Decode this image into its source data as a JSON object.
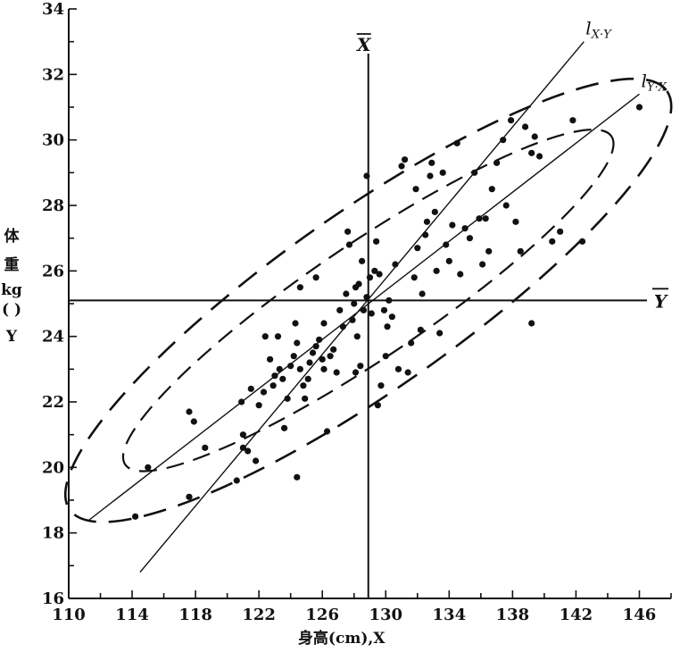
{
  "chart_data": {
    "type": "scatter",
    "title": "",
    "xlabel": "身高(cm),X",
    "ylabel_chars": [
      "体",
      "重",
      "kg",
      "( )",
      "Y"
    ],
    "xlim": [
      110,
      148
    ],
    "ylim": [
      16,
      34
    ],
    "x_ticks": [
      110,
      114,
      118,
      122,
      126,
      130,
      134,
      138,
      142,
      146
    ],
    "y_ticks": [
      16,
      18,
      20,
      22,
      24,
      26,
      28,
      30,
      32,
      34
    ],
    "grid": false,
    "mean_x": 128.9,
    "mean_y": 25.1,
    "mean_x_label": "X",
    "mean_y_label": "Y",
    "regression_lines": [
      {
        "name_main": "l",
        "name_sub": "X·Y",
        "from": [
          114.5,
          16.8
        ],
        "to": [
          142.5,
          33.0
        ]
      },
      {
        "name_main": "l",
        "name_sub": "Y·X",
        "from": [
          111.3,
          18.4
        ],
        "to": [
          146.0,
          31.4
        ]
      }
    ],
    "ellipses": [
      {
        "center": [
          128.9,
          25.1
        ],
        "semi_major_cm": 23.0,
        "semi_minor_cm": 5.6,
        "angle_deg": 35
      },
      {
        "center": [
          128.9,
          25.1
        ],
        "semi_major_cm": 18.5,
        "semi_minor_cm": 3.6,
        "angle_deg": 34
      }
    ],
    "points": [
      [
        114.2,
        18.5
      ],
      [
        115.0,
        20.0
      ],
      [
        117.6,
        21.7
      ],
      [
        117.9,
        21.4
      ],
      [
        117.6,
        19.1
      ],
      [
        118.6,
        20.6
      ],
      [
        120.6,
        19.6
      ],
      [
        121.0,
        21.0
      ],
      [
        121.0,
        20.6
      ],
      [
        120.9,
        22.0
      ],
      [
        121.5,
        22.4
      ],
      [
        121.8,
        20.2
      ],
      [
        121.3,
        20.5
      ],
      [
        122.0,
        21.9
      ],
      [
        122.3,
        22.3
      ],
      [
        122.4,
        24.0
      ],
      [
        122.7,
        23.3
      ],
      [
        122.9,
        22.5
      ],
      [
        123.0,
        22.8
      ],
      [
        123.2,
        24.0
      ],
      [
        123.3,
        23.0
      ],
      [
        123.5,
        22.7
      ],
      [
        123.8,
        22.1
      ],
      [
        123.6,
        21.2
      ],
      [
        124.0,
        23.1
      ],
      [
        124.2,
        23.4
      ],
      [
        124.3,
        24.4
      ],
      [
        124.4,
        23.8
      ],
      [
        124.6,
        23.0
      ],
      [
        124.8,
        22.5
      ],
      [
        124.9,
        22.1
      ],
      [
        125.1,
        22.7
      ],
      [
        125.2,
        23.2
      ],
      [
        125.4,
        23.5
      ],
      [
        125.6,
        23.7
      ],
      [
        125.8,
        23.9
      ],
      [
        126.0,
        23.3
      ],
      [
        126.1,
        23.0
      ],
      [
        126.5,
        23.4
      ],
      [
        126.3,
        21.1
      ],
      [
        124.4,
        19.7
      ],
      [
        125.6,
        25.8
      ],
      [
        124.6,
        25.5
      ],
      [
        126.1,
        24.4
      ],
      [
        126.7,
        23.6
      ],
      [
        126.9,
        22.9
      ],
      [
        127.3,
        24.3
      ],
      [
        127.1,
        24.8
      ],
      [
        127.5,
        25.3
      ],
      [
        127.7,
        26.8
      ],
      [
        127.6,
        27.2
      ],
      [
        127.9,
        24.5
      ],
      [
        128.0,
        25.0
      ],
      [
        128.1,
        25.5
      ],
      [
        128.2,
        24.0
      ],
      [
        128.3,
        25.6
      ],
      [
        128.5,
        26.3
      ],
      [
        128.4,
        23.1
      ],
      [
        128.6,
        24.8
      ],
      [
        128.8,
        25.2
      ],
      [
        129.0,
        25.8
      ],
      [
        129.1,
        24.7
      ],
      [
        129.3,
        26.0
      ],
      [
        129.4,
        26.9
      ],
      [
        129.6,
        25.9
      ],
      [
        128.8,
        28.9
      ],
      [
        128.1,
        22.9
      ],
      [
        129.5,
        21.9
      ],
      [
        129.7,
        22.5
      ],
      [
        129.9,
        24.8
      ],
      [
        130.0,
        23.4
      ],
      [
        130.1,
        24.3
      ],
      [
        130.2,
        25.1
      ],
      [
        130.4,
        24.6
      ],
      [
        130.6,
        26.2
      ],
      [
        130.8,
        23.0
      ],
      [
        131.0,
        29.2
      ],
      [
        131.2,
        29.4
      ],
      [
        131.4,
        22.9
      ],
      [
        131.6,
        23.8
      ],
      [
        131.8,
        25.8
      ],
      [
        131.9,
        28.5
      ],
      [
        132.0,
        26.7
      ],
      [
        132.2,
        24.2
      ],
      [
        132.3,
        25.3
      ],
      [
        132.5,
        27.1
      ],
      [
        132.6,
        27.5
      ],
      [
        132.8,
        28.9
      ],
      [
        132.9,
        29.3
      ],
      [
        133.1,
        27.8
      ],
      [
        133.2,
        26.0
      ],
      [
        133.4,
        24.1
      ],
      [
        133.6,
        29.0
      ],
      [
        133.8,
        26.8
      ],
      [
        134.0,
        26.3
      ],
      [
        134.2,
        27.4
      ],
      [
        134.5,
        29.9
      ],
      [
        134.7,
        25.9
      ],
      [
        135.0,
        27.3
      ],
      [
        135.3,
        27.0
      ],
      [
        135.6,
        29.0
      ],
      [
        135.9,
        27.6
      ],
      [
        136.1,
        26.2
      ],
      [
        136.3,
        27.6
      ],
      [
        136.5,
        26.6
      ],
      [
        136.7,
        28.5
      ],
      [
        137.0,
        29.3
      ],
      [
        137.4,
        30.0
      ],
      [
        137.6,
        28.0
      ],
      [
        137.9,
        30.6
      ],
      [
        138.2,
        27.5
      ],
      [
        138.5,
        26.6
      ],
      [
        138.8,
        30.4
      ],
      [
        139.2,
        29.6
      ],
      [
        139.4,
        30.1
      ],
      [
        139.7,
        29.5
      ],
      [
        140.5,
        26.9
      ],
      [
        141.0,
        27.2
      ],
      [
        141.8,
        30.6
      ],
      [
        142.4,
        26.9
      ],
      [
        139.2,
        24.4
      ],
      [
        146.0,
        31.0
      ]
    ]
  }
}
